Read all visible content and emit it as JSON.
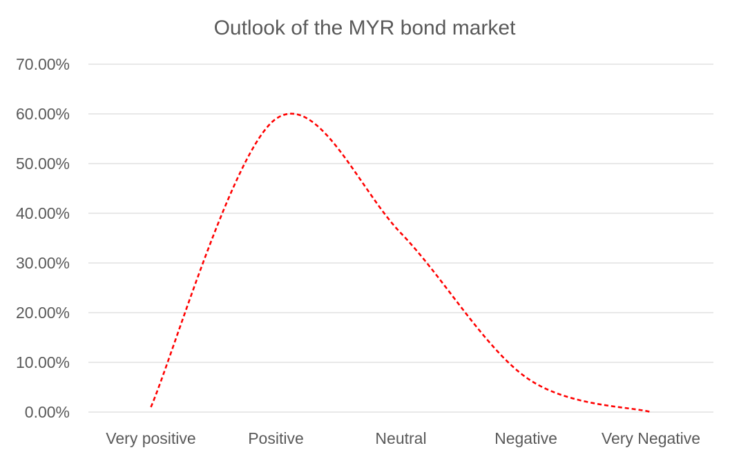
{
  "chart_data": {
    "type": "line",
    "title": "Outlook of the MYR bond market",
    "xlabel": "",
    "ylabel": "",
    "categories": [
      "Very positive",
      "Positive",
      "Neutral",
      "Negative",
      "Very Negative"
    ],
    "series": [
      {
        "values": [
          0.01,
          0.59,
          0.36,
          0.07,
          0.0
        ],
        "color": "#ff0000",
        "line_style": "dashed",
        "smooth": true
      }
    ],
    "ylim": [
      0,
      0.7
    ],
    "yticks": [
      "0.00%",
      "10.00%",
      "20.00%",
      "30.00%",
      "40.00%",
      "50.00%",
      "60.00%",
      "70.00%"
    ],
    "grid": true,
    "legend": "none"
  }
}
